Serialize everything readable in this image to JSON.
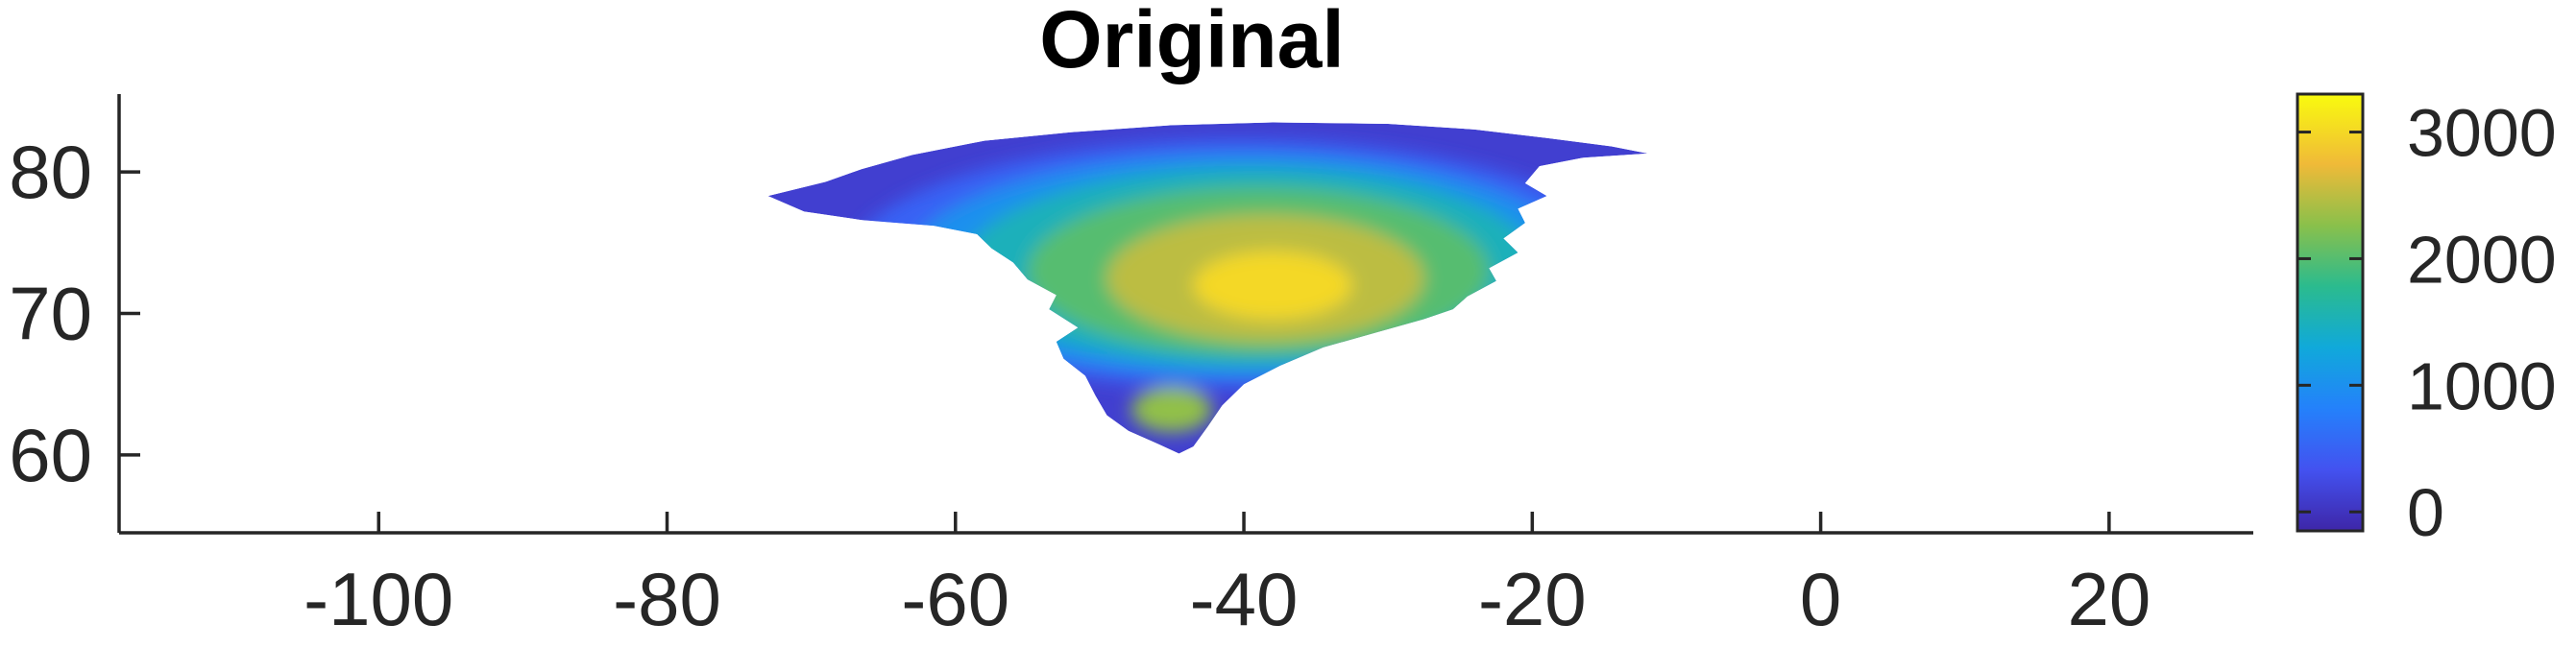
{
  "chart_data": {
    "type": "heatmap",
    "title": "Original",
    "xlabel": "",
    "ylabel": "",
    "xlim": [
      -118,
      30
    ],
    "ylim": [
      54.5,
      85.5
    ],
    "x_ticks": [
      -100,
      -80,
      -60,
      -40,
      -20,
      0,
      20
    ],
    "x_tick_labels": [
      "-100",
      "-80",
      "-60",
      "-40",
      "-20",
      "0",
      "20"
    ],
    "y_ticks": [
      60,
      70,
      80
    ],
    "y_tick_labels": [
      "60",
      "70",
      "80"
    ],
    "grid": false,
    "colormap": "parula",
    "colorbar": {
      "ticks": [
        0,
        1000,
        2000,
        3000
      ],
      "tick_labels": [
        "0",
        "1000",
        "2000",
        "3000"
      ],
      "range": [
        -150,
        3300
      ],
      "location": "right"
    },
    "region_outline": [
      [
        -73.0,
        78.3
      ],
      [
        -69.0,
        79.3
      ],
      [
        -66.5,
        80.2
      ],
      [
        -63.0,
        81.2
      ],
      [
        -58.0,
        82.2
      ],
      [
        -52.0,
        82.8
      ],
      [
        -45.0,
        83.3
      ],
      [
        -38.0,
        83.5
      ],
      [
        -30.0,
        83.4
      ],
      [
        -24.0,
        83.0
      ],
      [
        -19.0,
        82.4
      ],
      [
        -14.5,
        81.8
      ],
      [
        -12.0,
        81.3
      ],
      [
        -16.5,
        81.0
      ],
      [
        -19.5,
        80.4
      ],
      [
        -20.5,
        79.2
      ],
      [
        -19.0,
        78.3
      ],
      [
        -21.0,
        77.4
      ],
      [
        -20.5,
        76.4
      ],
      [
        -22.0,
        75.3
      ],
      [
        -21.0,
        74.3
      ],
      [
        -23.0,
        73.2
      ],
      [
        -22.5,
        72.3
      ],
      [
        -24.5,
        71.2
      ],
      [
        -25.5,
        70.3
      ],
      [
        -27.5,
        69.6
      ],
      [
        -31.0,
        68.6
      ],
      [
        -34.5,
        67.6
      ],
      [
        -37.5,
        66.3
      ],
      [
        -40.0,
        65.0
      ],
      [
        -41.5,
        63.5
      ],
      [
        -42.5,
        62.0
      ],
      [
        -43.5,
        60.6
      ],
      [
        -44.5,
        60.1
      ],
      [
        -46.0,
        60.8
      ],
      [
        -48.0,
        61.7
      ],
      [
        -49.5,
        62.8
      ],
      [
        -50.3,
        64.2
      ],
      [
        -51.0,
        65.6
      ],
      [
        -52.5,
        66.8
      ],
      [
        -53.0,
        68.0
      ],
      [
        -51.5,
        69.0
      ],
      [
        -53.5,
        70.3
      ],
      [
        -53.0,
        71.3
      ],
      [
        -55.0,
        72.4
      ],
      [
        -56.0,
        73.6
      ],
      [
        -57.5,
        74.6
      ],
      [
        -58.5,
        75.6
      ],
      [
        -61.5,
        76.2
      ],
      [
        -66.5,
        76.6
      ],
      [
        -70.5,
        77.2
      ]
    ],
    "elevation_contours": [
      {
        "value": 500,
        "center": [
          -40.5,
          73.5
        ],
        "rx": 27.0,
        "ry": 8.8
      },
      {
        "value": 1000,
        "center": [
          -40.0,
          73.4
        ],
        "rx": 23.5,
        "ry": 7.9
      },
      {
        "value": 1500,
        "center": [
          -39.5,
          73.3
        ],
        "rx": 20.0,
        "ry": 7.0
      },
      {
        "value": 2000,
        "center": [
          -39.0,
          73.0
        ],
        "rx": 16.0,
        "ry": 5.9
      },
      {
        "value": 2500,
        "center": [
          -38.5,
          72.5
        ],
        "rx": 11.0,
        "ry": 4.5
      },
      {
        "value": 3000,
        "center": [
          -38.0,
          72.0
        ],
        "rx": 5.5,
        "ry": 2.4
      },
      {
        "value": 2300,
        "center": [
          -45.0,
          63.2
        ],
        "rx": 2.8,
        "ry": 1.6
      }
    ]
  }
}
